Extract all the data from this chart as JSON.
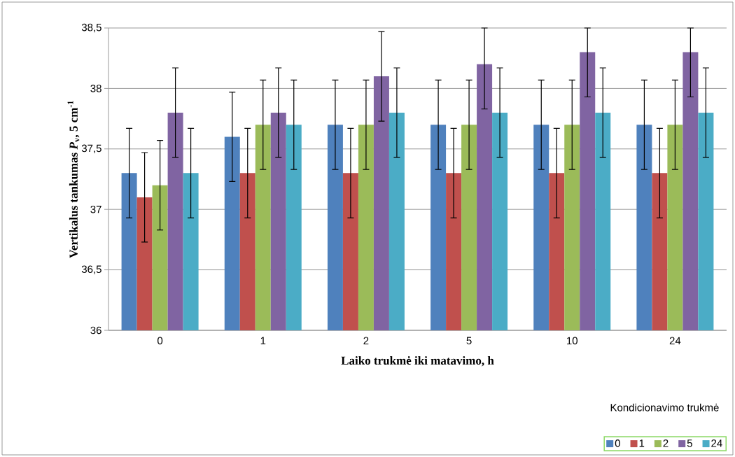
{
  "chart_data": {
    "type": "bar",
    "xlabel": "Laiko trukmė iki matavimo, h",
    "ylabel": "Vertikalus tankumas *P*$_{v}$, 5 cm$^{-1}$",
    "legend_title": "Kondicionavimo trukmė",
    "categories": [
      "0",
      "1",
      "2",
      "5",
      "10",
      "24"
    ],
    "series": [
      {
        "name": "0",
        "color": "#4f81bd",
        "values": [
          37.3,
          37.6,
          37.7,
          37.7,
          37.7,
          37.7
        ],
        "errors": [
          0.37,
          0.37,
          0.37,
          0.37,
          0.37,
          0.37
        ]
      },
      {
        "name": "1",
        "color": "#c0504d",
        "values": [
          37.1,
          37.3,
          37.3,
          37.3,
          37.3,
          37.3
        ],
        "errors": [
          0.37,
          0.37,
          0.37,
          0.37,
          0.37,
          0.37
        ]
      },
      {
        "name": "2",
        "color": "#9bbb59",
        "values": [
          37.2,
          37.7,
          37.7,
          37.7,
          37.7,
          37.7
        ],
        "errors": [
          0.37,
          0.37,
          0.37,
          0.37,
          0.37,
          0.37
        ]
      },
      {
        "name": "5",
        "color": "#8064a2",
        "values": [
          37.8,
          37.8,
          38.1,
          38.2,
          38.3,
          38.3
        ],
        "errors": [
          0.37,
          0.37,
          0.37,
          [
            37.83,
            38.5
          ],
          [
            37.93,
            38.5
          ],
          [
            37.93,
            38.5
          ]
        ]
      },
      {
        "name": "24",
        "color": "#4bacc6",
        "values": [
          37.3,
          37.7,
          37.8,
          37.8,
          37.8,
          37.8
        ],
        "errors": [
          0.37,
          0.37,
          0.37,
          0.37,
          0.37,
          0.37
        ]
      }
    ],
    "ylim": [
      36,
      38.5
    ],
    "yticks": [
      36,
      {
        "value": 36.5,
        "label": "36,5"
      },
      37,
      {
        "value": 37.5,
        "label": "37,5"
      },
      38,
      {
        "value": 38.5,
        "label": "38,5"
      }
    ],
    "grid": "y",
    "legend": "bottom right"
  }
}
